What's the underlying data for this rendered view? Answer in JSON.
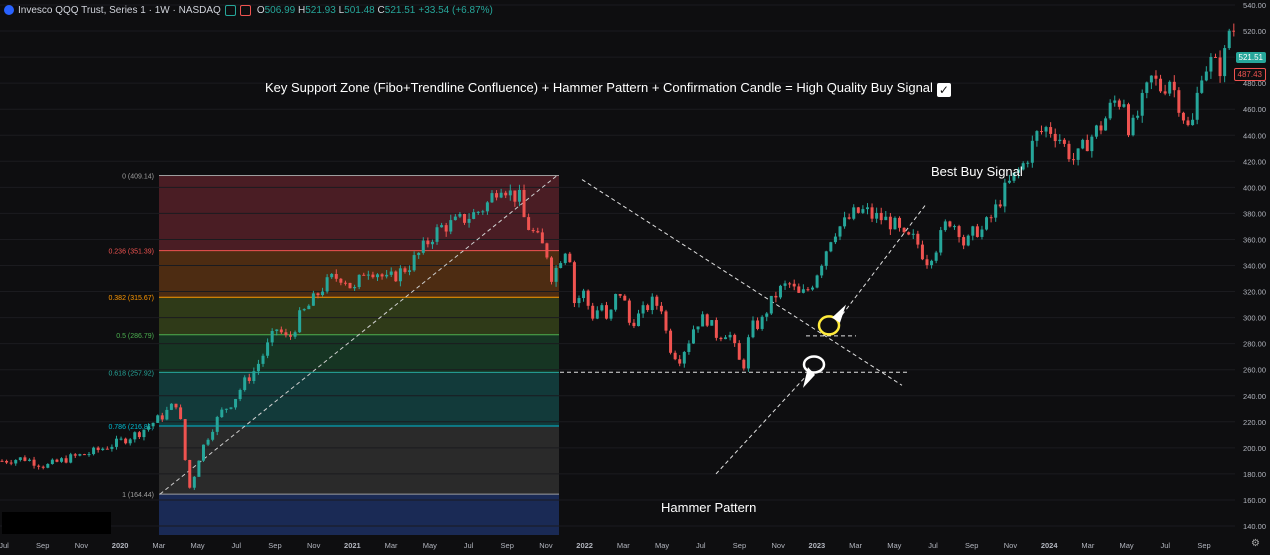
{
  "legend": {
    "symbol": "Invesco QQQ Trust, Series 1 · 1W · NASDAQ",
    "open_label": "O",
    "open": "506.99",
    "high_label": "H",
    "high": "521.93",
    "low_label": "L",
    "low": "501.48",
    "close_label": "C",
    "close": "521.51",
    "change": "+33.54 (+6.87%)"
  },
  "headline": "Key Support Zone (Fibo+Trendline Confluence) + Hammer Pattern + Confirmation Candle = High Quality Buy Signal",
  "annotations": {
    "best_buy": "Best Buy Signal",
    "hammer": "Hammer Pattern"
  },
  "price_tags": {
    "last": "521.51",
    "prev": "487.43"
  },
  "colors": {
    "up": "#26a69a",
    "down": "#ef5350",
    "background": "#0e0e10",
    "highlight_circle": "#ffeb3b"
  },
  "chart_data": {
    "type": "candlestick",
    "y_axis": {
      "range": [
        135,
        545
      ],
      "ticks": [
        140,
        160,
        180,
        200,
        220,
        240,
        260,
        280,
        300,
        320,
        340,
        360,
        380,
        400,
        420,
        440,
        460,
        480,
        500,
        520,
        540
      ],
      "labels": [
        "140.00",
        "160.00",
        "180.00",
        "200.00",
        "220.00",
        "240.00",
        "260.00",
        "280.00",
        "300.00",
        "320.00",
        "340.00",
        "360.00",
        "380.00",
        "400.00",
        "420.00",
        "440.00",
        "460.00",
        "480.00",
        "500.00",
        "520.00",
        "540.00"
      ]
    },
    "x_axis": {
      "labels": [
        "Jul",
        "Sep",
        "Nov",
        "2020",
        "Mar",
        "May",
        "Jul",
        "Sep",
        "Nov",
        "2021",
        "Mar",
        "May",
        "Jul",
        "Sep",
        "Nov",
        "2022",
        "Mar",
        "May",
        "Jul",
        "Sep",
        "Nov",
        "2023",
        "Mar",
        "May",
        "Jul",
        "Sep",
        "Nov",
        "2024",
        "Mar",
        "May",
        "Jul",
        "Sep"
      ],
      "bold": [
        false,
        false,
        false,
        true,
        false,
        false,
        false,
        false,
        false,
        true,
        false,
        false,
        false,
        false,
        false,
        true,
        false,
        false,
        false,
        false,
        false,
        true,
        false,
        false,
        false,
        false,
        false,
        true,
        false,
        false,
        false,
        false
      ]
    },
    "fibonacci": [
      {
        "label": "0 (409.14)",
        "price": 409.14,
        "color": "#9e9e9e",
        "fill": "#4a1d24"
      },
      {
        "label": "0.236 (351.39)",
        "price": 351.39,
        "color": "#ef5350",
        "fill": "#4d2c12"
      },
      {
        "label": "0.382 (315.67)",
        "price": 315.67,
        "color": "#ff9800",
        "fill": "#2f3a18"
      },
      {
        "label": "0.5 (286.79)",
        "price": 286.79,
        "color": "#4caf50",
        "fill": "#163523"
      },
      {
        "label": "0.618 (257.92)",
        "price": 257.92,
        "color": "#26a69a",
        "fill": "#123a3a"
      },
      {
        "label": "0.786 (216.81)",
        "price": 216.81,
        "color": "#00bcd4",
        "fill": "#2a2a2a"
      },
      {
        "label": "1 (164.44)",
        "price": 164.44,
        "color": "#9e9e9e",
        "fill": "#1a2a55"
      }
    ],
    "support_level": 258,
    "path": [
      [
        0,
        190
      ],
      [
        8,
        192
      ],
      [
        16,
        186
      ],
      [
        24,
        192
      ],
      [
        32,
        196
      ],
      [
        42,
        204
      ],
      [
        50,
        212
      ],
      [
        58,
        224
      ],
      [
        64,
        236
      ],
      [
        66,
        200
      ],
      [
        68,
        168
      ],
      [
        70,
        180
      ],
      [
        72,
        196
      ],
      [
        76,
        214
      ],
      [
        80,
        228
      ],
      [
        84,
        236
      ],
      [
        88,
        250
      ],
      [
        92,
        260
      ],
      [
        96,
        276
      ],
      [
        100,
        292
      ],
      [
        104,
        282
      ],
      [
        108,
        300
      ],
      [
        112,
        310
      ],
      [
        116,
        322
      ],
      [
        120,
        330
      ],
      [
        124,
        332
      ],
      [
        128,
        320
      ],
      [
        132,
        338
      ],
      [
        136,
        336
      ],
      [
        140,
        328
      ],
      [
        144,
        334
      ],
      [
        148,
        340
      ],
      [
        152,
        350
      ],
      [
        156,
        362
      ],
      [
        160,
        370
      ],
      [
        164,
        372
      ],
      [
        168,
        376
      ],
      [
        172,
        380
      ],
      [
        176,
        386
      ],
      [
        180,
        400
      ],
      [
        182,
        404
      ],
      [
        184,
        396
      ],
      [
        188,
        392
      ],
      [
        190,
        374
      ],
      [
        194,
        362
      ],
      [
        198,
        350
      ],
      [
        200,
        330
      ],
      [
        204,
        352
      ],
      [
        206,
        356
      ],
      [
        208,
        312
      ],
      [
        212,
        320
      ],
      [
        214,
        300
      ],
      [
        218,
        310
      ],
      [
        220,
        294
      ],
      [
        224,
        322
      ],
      [
        226,
        314
      ],
      [
        228,
        296
      ],
      [
        232,
        302
      ],
      [
        236,
        312
      ],
      [
        240,
        308
      ],
      [
        242,
        280
      ],
      [
        246,
        268
      ],
      [
        250,
        284
      ],
      [
        252,
        296
      ],
      [
        256,
        300
      ],
      [
        260,
        286
      ],
      [
        264,
        290
      ],
      [
        268,
        266
      ],
      [
        270,
        264
      ],
      [
        272,
        292
      ],
      [
        276,
        296
      ],
      [
        278,
        306
      ],
      [
        282,
        320
      ],
      [
        286,
        326
      ],
      [
        290,
        316
      ],
      [
        294,
        324
      ],
      [
        298,
        344
      ],
      [
        302,
        366
      ],
      [
        306,
        372
      ],
      [
        310,
        380
      ],
      [
        314,
        382
      ],
      [
        316,
        378
      ],
      [
        320,
        376
      ],
      [
        324,
        372
      ],
      [
        328,
        360
      ],
      [
        332,
        360
      ],
      [
        336,
        344
      ],
      [
        340,
        356
      ],
      [
        344,
        376
      ],
      [
        348,
        368
      ],
      [
        350,
        354
      ],
      [
        354,
        368
      ],
      [
        356,
        366
      ],
      [
        360,
        378
      ],
      [
        364,
        396
      ],
      [
        368,
        408
      ],
      [
        372,
        420
      ],
      [
        376,
        440
      ],
      [
        380,
        446
      ],
      [
        384,
        440
      ],
      [
        386,
        432
      ],
      [
        390,
        420
      ],
      [
        392,
        426
      ],
      [
        394,
        434
      ],
      [
        398,
        444
      ],
      [
        400,
        448
      ],
      [
        404,
        466
      ],
      [
        406,
        466
      ],
      [
        408,
        468
      ],
      [
        410,
        440
      ],
      [
        414,
        462
      ],
      [
        418,
        484
      ],
      [
        422,
        474
      ],
      [
        424,
        486
      ],
      [
        428,
        464
      ],
      [
        432,
        440
      ],
      [
        436,
        490
      ],
      [
        440,
        497
      ],
      [
        442,
        490
      ],
      [
        444,
        496
      ],
      [
        446,
        521
      ]
    ],
    "x_range": [
      0,
      450
    ]
  }
}
